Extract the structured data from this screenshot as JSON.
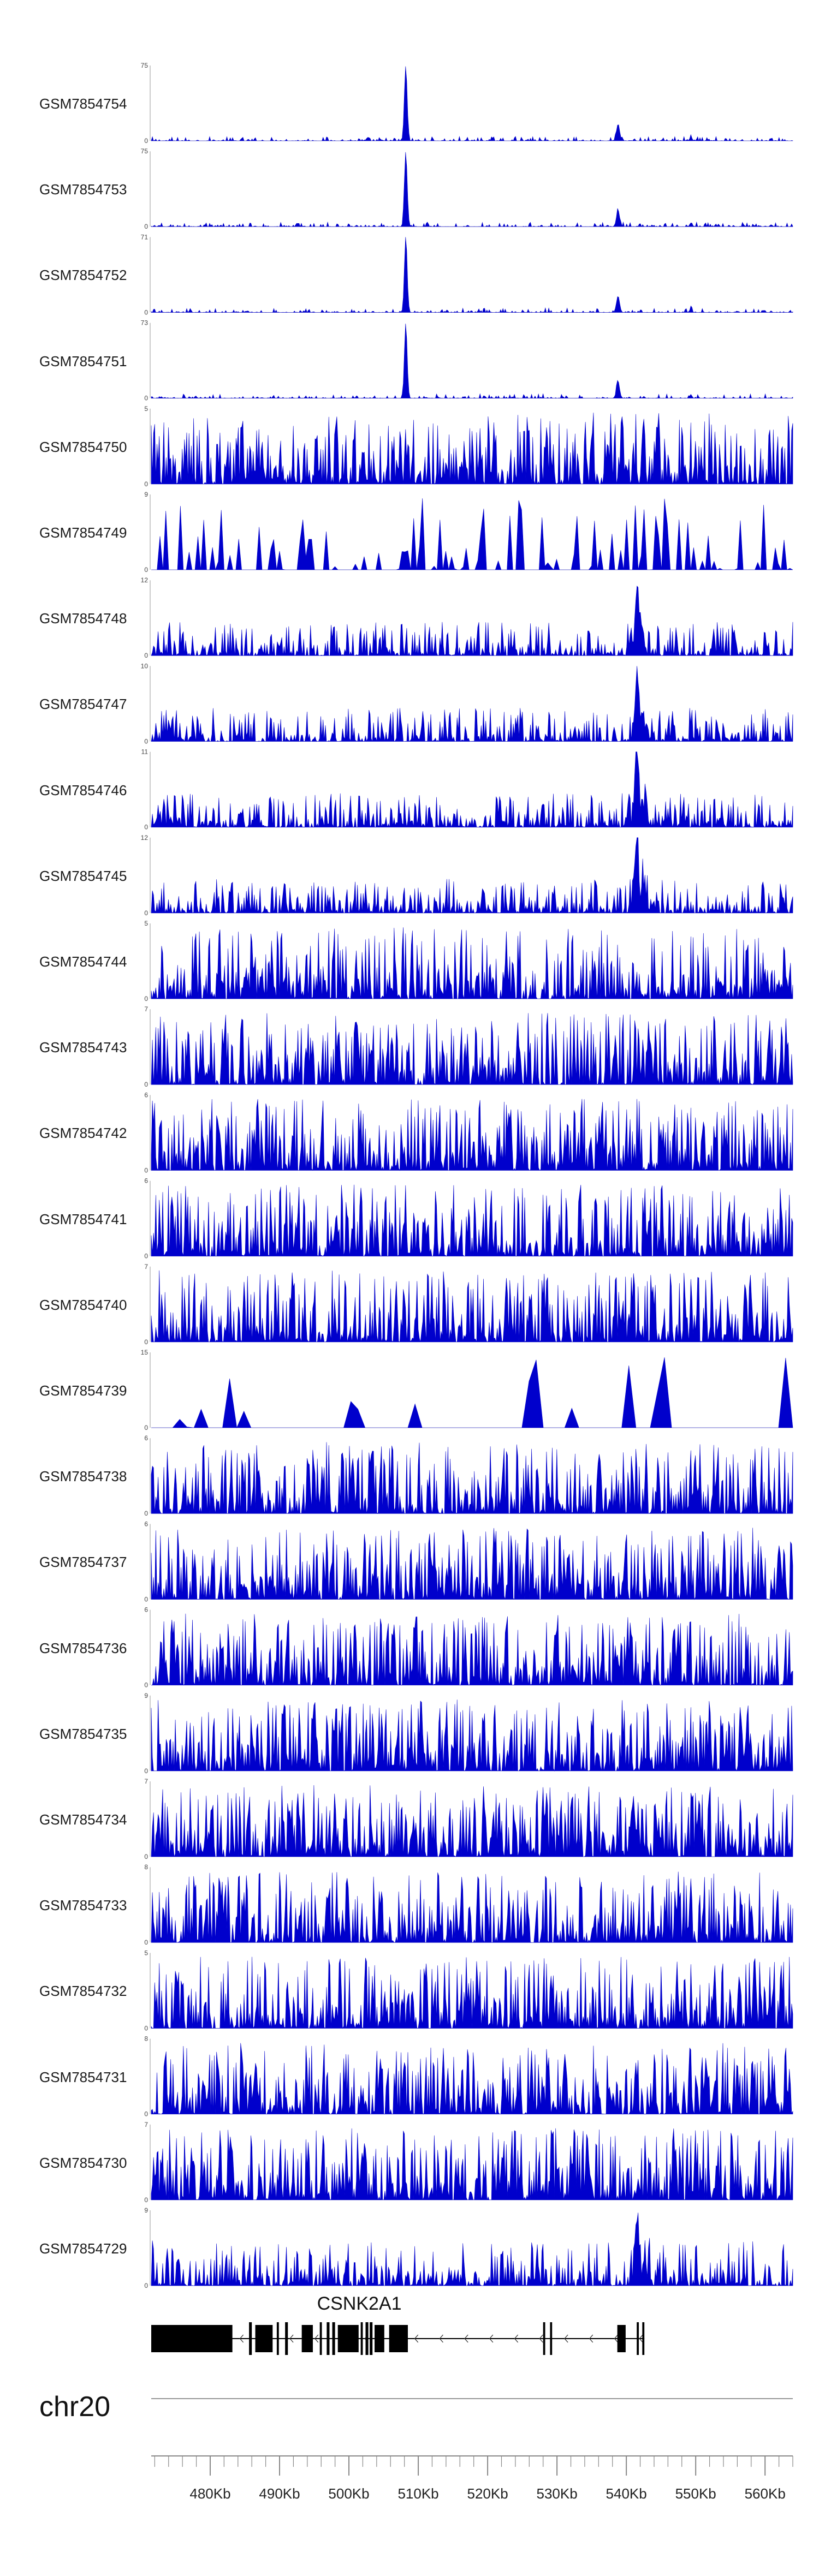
{
  "chart_data": {
    "type": "area",
    "title": "",
    "tracks": [
      {
        "name": "GSM7854754",
        "ymax": "75",
        "ymin": "0",
        "profile": "spike-peak"
      },
      {
        "name": "GSM7854753",
        "ymax": "75",
        "ymin": "0",
        "profile": "spike-peak"
      },
      {
        "name": "GSM7854752",
        "ymax": "71",
        "ymin": "0",
        "profile": "spike-peak"
      },
      {
        "name": "GSM7854751",
        "ymax": "73",
        "ymin": "0",
        "profile": "spike-peak"
      },
      {
        "name": "GSM7854750",
        "ymax": "5",
        "ymin": "0",
        "profile": "dense-noise"
      },
      {
        "name": "GSM7854749",
        "ymax": "9",
        "ymin": "0",
        "profile": "sparse-noise"
      },
      {
        "name": "GSM7854748",
        "ymax": "12",
        "ymin": "0",
        "profile": "noise-peak"
      },
      {
        "name": "GSM7854747",
        "ymax": "10",
        "ymin": "0",
        "profile": "noise-peak"
      },
      {
        "name": "GSM7854746",
        "ymax": "11",
        "ymin": "0",
        "profile": "noise-peak"
      },
      {
        "name": "GSM7854745",
        "ymax": "12",
        "ymin": "0",
        "profile": "noise-peak"
      },
      {
        "name": "GSM7854744",
        "ymax": "5",
        "ymin": "0",
        "profile": "dense-noise"
      },
      {
        "name": "GSM7854743",
        "ymax": "7",
        "ymin": "0",
        "profile": "dense-noise"
      },
      {
        "name": "GSM7854742",
        "ymax": "6",
        "ymin": "0",
        "profile": "dense-noise"
      },
      {
        "name": "GSM7854741",
        "ymax": "6",
        "ymin": "0",
        "profile": "dense-noise"
      },
      {
        "name": "GSM7854740",
        "ymax": "7",
        "ymin": "0",
        "profile": "dense-noise"
      },
      {
        "name": "GSM7854739",
        "ymax": "15",
        "ymin": "0",
        "profile": "sparse-triangles"
      },
      {
        "name": "GSM7854738",
        "ymax": "6",
        "ymin": "0",
        "profile": "dense-noise"
      },
      {
        "name": "GSM7854737",
        "ymax": "6",
        "ymin": "0",
        "profile": "dense-noise"
      },
      {
        "name": "GSM7854736",
        "ymax": "6",
        "ymin": "0",
        "profile": "dense-noise"
      },
      {
        "name": "GSM7854735",
        "ymax": "9",
        "ymin": "0",
        "profile": "dense-noise"
      },
      {
        "name": "GSM7854734",
        "ymax": "7",
        "ymin": "0",
        "profile": "dense-noise"
      },
      {
        "name": "GSM7854733",
        "ymax": "8",
        "ymin": "0",
        "profile": "dense-noise"
      },
      {
        "name": "GSM7854732",
        "ymax": "5",
        "ymin": "0",
        "profile": "dense-noise"
      },
      {
        "name": "GSM7854731",
        "ymax": "8",
        "ymin": "0",
        "profile": "dense-noise"
      },
      {
        "name": "GSM7854730",
        "ymax": "7",
        "ymin": "0",
        "profile": "dense-noise"
      },
      {
        "name": "GSM7854729",
        "ymax": "9",
        "ymin": "0",
        "profile": "noise-peak-small"
      }
    ],
    "gene": {
      "name": "CSNK2A1",
      "strand": "-",
      "exons_kb": [
        [
          471.5,
          483.2
        ],
        [
          485.6,
          486.0
        ],
        [
          486.5,
          489.0
        ],
        [
          489.6,
          489.9
        ],
        [
          490.8,
          491.2
        ],
        [
          493.2,
          494.8
        ],
        [
          495.8,
          496.1
        ],
        [
          496.8,
          497.2
        ],
        [
          497.6,
          498.0
        ],
        [
          498.4,
          501.4
        ],
        [
          501.7,
          502.0
        ],
        [
          502.4,
          502.8
        ],
        [
          503.0,
          503.4
        ],
        [
          503.7,
          505.1
        ],
        [
          505.8,
          508.5
        ],
        [
          528.0,
          528.3
        ],
        [
          529.0,
          529.3
        ],
        [
          538.7,
          539.9
        ],
        [
          541.5,
          541.8
        ],
        [
          542.3,
          542.6
        ]
      ],
      "span_kb": [
        471.5,
        542.6
      ]
    },
    "chromosome": "chr20",
    "x_axis": {
      "range_kb": [
        471.5,
        564.0
      ],
      "tick_labels": [
        "480Kb",
        "490Kb",
        "500Kb",
        "510Kb",
        "520Kb",
        "530Kb",
        "540Kb",
        "550Kb",
        "560Kb"
      ],
      "tick_values_kb": [
        480,
        490,
        500,
        510,
        520,
        530,
        540,
        550,
        560
      ],
      "minor_step_kb": 2
    },
    "colors": {
      "signal": "#0000cc",
      "gene": "#000000",
      "axis": "#888888"
    }
  }
}
